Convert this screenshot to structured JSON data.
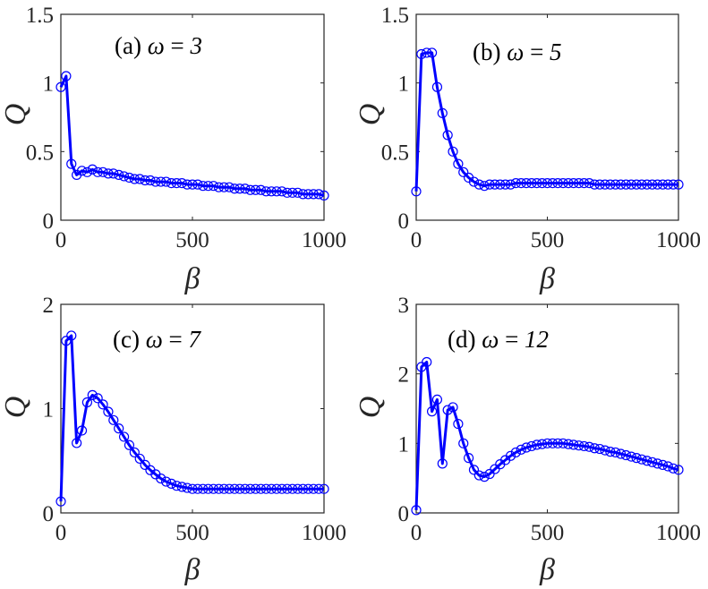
{
  "chart_data": [
    {
      "type": "line",
      "panel_label": "(a)",
      "param_symbol": "ω",
      "param_eq": "=",
      "param_value": "3",
      "xlabel": "β",
      "ylabel": "Q",
      "xlim": [
        0,
        1000
      ],
      "ylim": [
        0,
        1.5
      ],
      "xticks": [
        0,
        500,
        1000
      ],
      "yticks": [
        0,
        0.5,
        1,
        1.5
      ],
      "ytick_labels": [
        "0",
        "0.5",
        "1",
        "1.5"
      ],
      "xtick_labels": [
        "0",
        "500",
        "1000"
      ],
      "grid": false,
      "series": [
        {
          "color": "#0000ff",
          "marker": "circle",
          "x": [
            0,
            20,
            40,
            60,
            80,
            100,
            120,
            140,
            160,
            180,
            200,
            220,
            240,
            260,
            280,
            300,
            320,
            340,
            360,
            380,
            400,
            420,
            440,
            460,
            480,
            500,
            520,
            540,
            560,
            580,
            600,
            620,
            640,
            660,
            680,
            700,
            720,
            740,
            760,
            780,
            800,
            820,
            840,
            860,
            880,
            900,
            920,
            940,
            960,
            980,
            1000
          ],
          "y": [
            0.97,
            1.05,
            0.41,
            0.33,
            0.36,
            0.35,
            0.37,
            0.35,
            0.35,
            0.34,
            0.34,
            0.33,
            0.32,
            0.31,
            0.3,
            0.3,
            0.29,
            0.29,
            0.28,
            0.28,
            0.28,
            0.27,
            0.27,
            0.27,
            0.26,
            0.26,
            0.26,
            0.25,
            0.25,
            0.25,
            0.24,
            0.24,
            0.24,
            0.23,
            0.23,
            0.23,
            0.22,
            0.22,
            0.22,
            0.21,
            0.21,
            0.21,
            0.21,
            0.2,
            0.2,
            0.2,
            0.19,
            0.19,
            0.19,
            0.19,
            0.18
          ]
        }
      ]
    },
    {
      "type": "line",
      "panel_label": "(b)",
      "param_symbol": "ω",
      "param_eq": "=",
      "param_value": "5",
      "xlabel": "β",
      "ylabel": "Q",
      "xlim": [
        0,
        1000
      ],
      "ylim": [
        0,
        1.5
      ],
      "xticks": [
        0,
        500,
        1000
      ],
      "yticks": [
        0,
        0.5,
        1,
        1.5
      ],
      "ytick_labels": [
        "0",
        "0.5",
        "1",
        "1.5"
      ],
      "xtick_labels": [
        "0",
        "500",
        "1000"
      ],
      "grid": false,
      "series": [
        {
          "color": "#0000ff",
          "marker": "circle",
          "x": [
            0,
            20,
            40,
            60,
            80,
            100,
            120,
            140,
            160,
            180,
            200,
            220,
            240,
            260,
            280,
            300,
            320,
            340,
            360,
            380,
            400,
            420,
            440,
            460,
            480,
            500,
            520,
            540,
            560,
            580,
            600,
            620,
            640,
            660,
            680,
            700,
            720,
            740,
            760,
            780,
            800,
            820,
            840,
            860,
            880,
            900,
            920,
            940,
            960,
            980,
            1000
          ],
          "y": [
            0.21,
            1.21,
            1.22,
            1.22,
            0.97,
            0.78,
            0.62,
            0.5,
            0.41,
            0.35,
            0.31,
            0.28,
            0.26,
            0.25,
            0.26,
            0.26,
            0.26,
            0.26,
            0.26,
            0.27,
            0.27,
            0.27,
            0.27,
            0.27,
            0.27,
            0.27,
            0.27,
            0.27,
            0.27,
            0.27,
            0.27,
            0.27,
            0.27,
            0.27,
            0.26,
            0.26,
            0.26,
            0.26,
            0.26,
            0.26,
            0.26,
            0.26,
            0.26,
            0.26,
            0.26,
            0.26,
            0.26,
            0.26,
            0.26,
            0.26,
            0.26
          ]
        }
      ]
    },
    {
      "type": "line",
      "panel_label": "(c)",
      "param_symbol": "ω",
      "param_eq": "=",
      "param_value": "7",
      "xlabel": "β",
      "ylabel": "Q",
      "xlim": [
        0,
        1000
      ],
      "ylim": [
        0,
        2
      ],
      "xticks": [
        0,
        500,
        1000
      ],
      "yticks": [
        0,
        1,
        2
      ],
      "ytick_labels": [
        "0",
        "1",
        "2"
      ],
      "xtick_labels": [
        "0",
        "500",
        "1000"
      ],
      "grid": false,
      "series": [
        {
          "color": "#0000ff",
          "marker": "circle",
          "x": [
            0,
            20,
            40,
            60,
            80,
            100,
            120,
            140,
            160,
            180,
            200,
            220,
            240,
            260,
            280,
            300,
            320,
            340,
            360,
            380,
            400,
            420,
            440,
            460,
            480,
            500,
            520,
            540,
            560,
            580,
            600,
            620,
            640,
            660,
            680,
            700,
            720,
            740,
            760,
            780,
            800,
            820,
            840,
            860,
            880,
            900,
            920,
            940,
            960,
            980,
            1000
          ],
          "y": [
            0.11,
            1.65,
            1.7,
            0.67,
            0.79,
            1.06,
            1.13,
            1.1,
            1.04,
            0.97,
            0.89,
            0.81,
            0.73,
            0.65,
            0.58,
            0.52,
            0.46,
            0.41,
            0.37,
            0.33,
            0.3,
            0.28,
            0.26,
            0.25,
            0.24,
            0.23,
            0.23,
            0.23,
            0.23,
            0.23,
            0.23,
            0.23,
            0.23,
            0.23,
            0.23,
            0.23,
            0.23,
            0.23,
            0.23,
            0.23,
            0.23,
            0.23,
            0.23,
            0.23,
            0.23,
            0.23,
            0.23,
            0.23,
            0.23,
            0.23,
            0.23
          ]
        }
      ]
    },
    {
      "type": "line",
      "panel_label": "(d)",
      "param_symbol": "ω",
      "param_eq": "=",
      "param_value": "12",
      "xlabel": "β",
      "ylabel": "Q",
      "xlim": [
        0,
        1000
      ],
      "ylim": [
        0,
        3
      ],
      "xticks": [
        0,
        500,
        1000
      ],
      "yticks": [
        0,
        1,
        2,
        3
      ],
      "ytick_labels": [
        "0",
        "1",
        "2",
        "3"
      ],
      "xtick_labels": [
        "0",
        "500",
        "1000"
      ],
      "grid": false,
      "series": [
        {
          "color": "#0000ff",
          "marker": "circle",
          "x": [
            0,
            20,
            40,
            60,
            80,
            100,
            120,
            140,
            160,
            180,
            200,
            220,
            240,
            260,
            280,
            300,
            320,
            340,
            360,
            380,
            400,
            420,
            440,
            460,
            480,
            500,
            520,
            540,
            560,
            580,
            600,
            620,
            640,
            660,
            680,
            700,
            720,
            740,
            760,
            780,
            800,
            820,
            840,
            860,
            880,
            900,
            920,
            940,
            960,
            980,
            1000
          ],
          "y": [
            0.04,
            2.1,
            2.17,
            1.46,
            1.63,
            0.71,
            1.48,
            1.52,
            1.28,
            1.0,
            0.79,
            0.62,
            0.54,
            0.52,
            0.56,
            0.63,
            0.7,
            0.76,
            0.82,
            0.87,
            0.91,
            0.94,
            0.96,
            0.98,
            0.99,
            1.0,
            1.0,
            1.0,
            1.0,
            0.99,
            0.98,
            0.97,
            0.96,
            0.95,
            0.93,
            0.92,
            0.9,
            0.88,
            0.87,
            0.85,
            0.83,
            0.81,
            0.79,
            0.77,
            0.75,
            0.73,
            0.71,
            0.69,
            0.67,
            0.64,
            0.62
          ]
        }
      ]
    }
  ]
}
